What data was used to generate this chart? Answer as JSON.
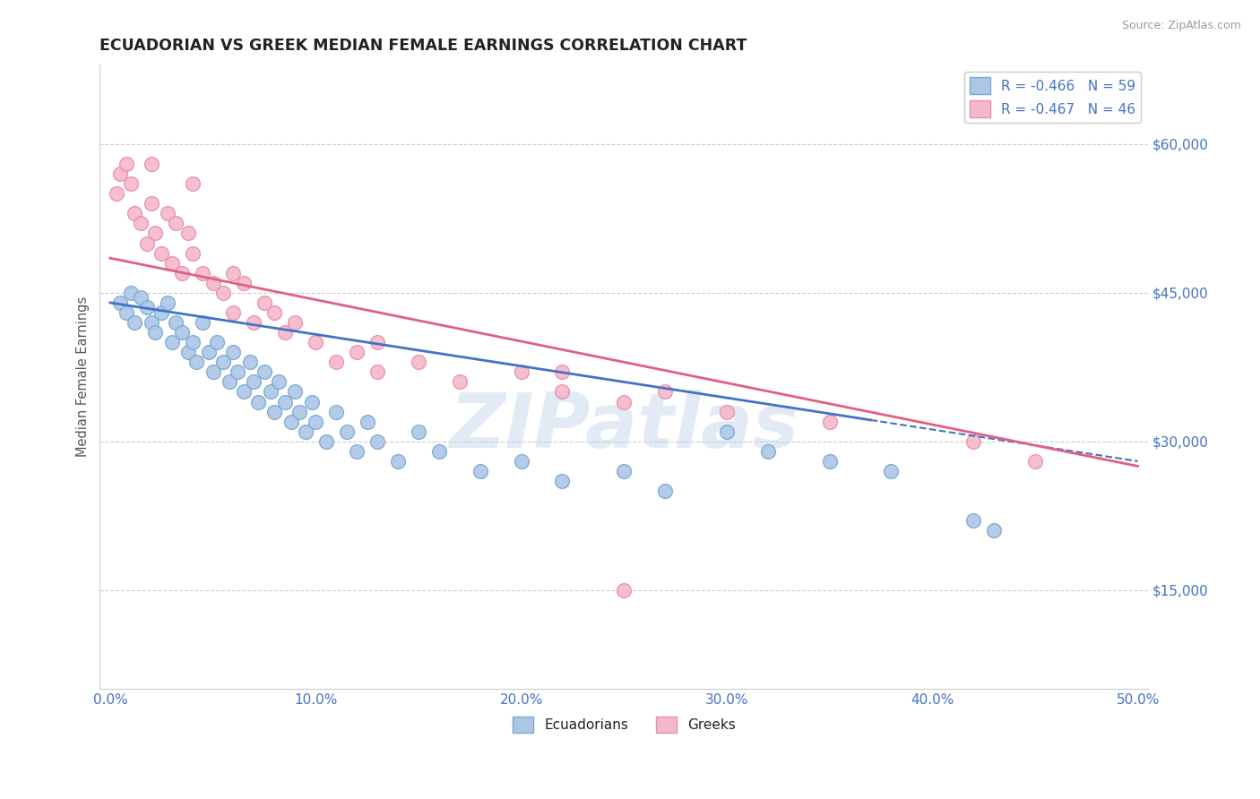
{
  "title": "ECUADORIAN VS GREEK MEDIAN FEMALE EARNINGS CORRELATION CHART",
  "source": "Source: ZipAtlas.com",
  "xlabel": "",
  "ylabel": "Median Female Earnings",
  "xlim": [
    -0.005,
    0.505
  ],
  "ylim": [
    5000,
    68000
  ],
  "yticks": [
    15000,
    30000,
    45000,
    60000
  ],
  "ytick_labels": [
    "$15,000",
    "$30,000",
    "$45,000",
    "$60,000"
  ],
  "xticks": [
    0.0,
    0.1,
    0.2,
    0.3,
    0.4,
    0.5
  ],
  "xtick_labels": [
    "0.0%",
    "10.0%",
    "20.0%",
    "30.0%",
    "40.0%",
    "50.0%"
  ],
  "background_color": "#ffffff",
  "grid_color": "#cccccc",
  "blue_color": "#adc6e8",
  "blue_edge_color": "#7aaad0",
  "blue_line_color": "#4472c4",
  "pink_color": "#f4b8cb",
  "pink_edge_color": "#e890a8",
  "pink_line_color": "#e06080",
  "blue_r": -0.466,
  "blue_n": 59,
  "pink_r": -0.467,
  "pink_n": 46,
  "watermark": "ZIPatlas",
  "watermark_color": "#b8cfe8",
  "legend_label_blue": "Ecuadorians",
  "legend_label_pink": "Greeks",
  "title_color": "#222222",
  "axis_label_color": "#555555",
  "tick_label_color": "#4472c4",
  "blue_line_intercept": 44000,
  "blue_line_slope": -32000,
  "pink_line_intercept": 48500,
  "pink_line_slope": -42000,
  "blue_scatter_x": [
    0.005,
    0.008,
    0.01,
    0.012,
    0.015,
    0.018,
    0.02,
    0.022,
    0.025,
    0.028,
    0.03,
    0.032,
    0.035,
    0.038,
    0.04,
    0.042,
    0.045,
    0.048,
    0.05,
    0.052,
    0.055,
    0.058,
    0.06,
    0.062,
    0.065,
    0.068,
    0.07,
    0.072,
    0.075,
    0.078,
    0.08,
    0.082,
    0.085,
    0.088,
    0.09,
    0.092,
    0.095,
    0.098,
    0.1,
    0.105,
    0.11,
    0.115,
    0.12,
    0.125,
    0.13,
    0.14,
    0.15,
    0.16,
    0.18,
    0.2,
    0.22,
    0.25,
    0.27,
    0.3,
    0.32,
    0.35,
    0.38,
    0.42,
    0.43
  ],
  "blue_scatter_y": [
    44000,
    43000,
    45000,
    42000,
    44500,
    43500,
    42000,
    41000,
    43000,
    44000,
    40000,
    42000,
    41000,
    39000,
    40000,
    38000,
    42000,
    39000,
    37000,
    40000,
    38000,
    36000,
    39000,
    37000,
    35000,
    38000,
    36000,
    34000,
    37000,
    35000,
    33000,
    36000,
    34000,
    32000,
    35000,
    33000,
    31000,
    34000,
    32000,
    30000,
    33000,
    31000,
    29000,
    32000,
    30000,
    28000,
    31000,
    29000,
    27000,
    28000,
    26000,
    27000,
    25000,
    31000,
    29000,
    28000,
    27000,
    22000,
    21000
  ],
  "pink_scatter_x": [
    0.003,
    0.005,
    0.008,
    0.01,
    0.012,
    0.015,
    0.018,
    0.02,
    0.022,
    0.025,
    0.028,
    0.03,
    0.032,
    0.035,
    0.038,
    0.04,
    0.045,
    0.05,
    0.055,
    0.06,
    0.065,
    0.07,
    0.075,
    0.08,
    0.085,
    0.09,
    0.1,
    0.11,
    0.12,
    0.13,
    0.15,
    0.17,
    0.2,
    0.22,
    0.25,
    0.27,
    0.3,
    0.35,
    0.42,
    0.45,
    0.02,
    0.04,
    0.06,
    0.13,
    0.22,
    0.25
  ],
  "pink_scatter_y": [
    55000,
    57000,
    58000,
    56000,
    53000,
    52000,
    50000,
    54000,
    51000,
    49000,
    53000,
    48000,
    52000,
    47000,
    51000,
    49000,
    47000,
    46000,
    45000,
    43000,
    46000,
    42000,
    44000,
    43000,
    41000,
    42000,
    40000,
    38000,
    39000,
    37000,
    38000,
    36000,
    37000,
    35000,
    34000,
    35000,
    33000,
    32000,
    30000,
    28000,
    58000,
    56000,
    47000,
    40000,
    37000,
    15000
  ]
}
